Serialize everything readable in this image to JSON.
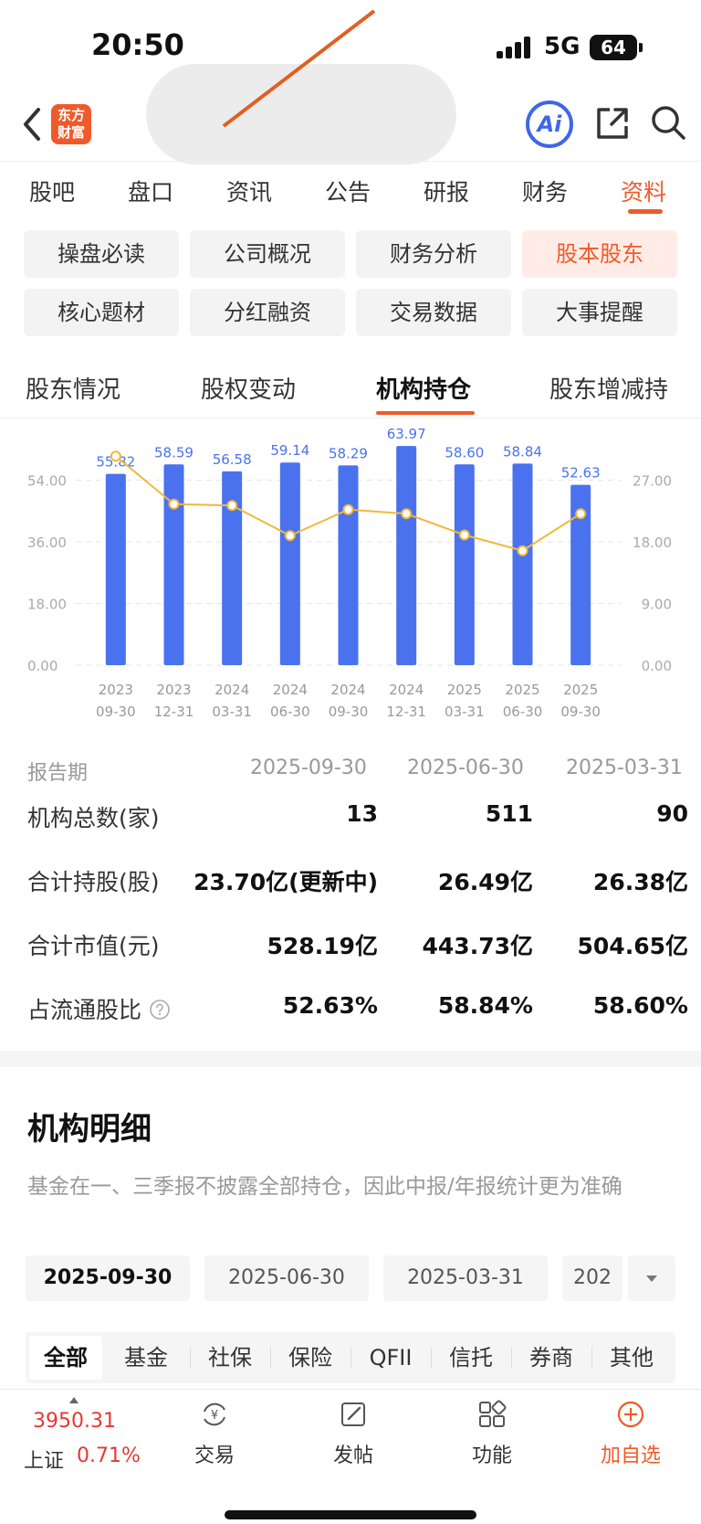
{
  "status": {
    "time": "20:50",
    "network": "5G",
    "battery": "64"
  },
  "nav": {
    "logo_line1": "东方",
    "logo_line2": "财富",
    "ai_label": "Ai"
  },
  "tabs": [
    "股吧",
    "盘口",
    "资讯",
    "公告",
    "研报",
    "财务",
    "资料"
  ],
  "active_tab": "资料",
  "chips": [
    "操盘必读",
    "公司概况",
    "财务分析",
    "股本股东",
    "核心题材",
    "分红融资",
    "交易数据",
    "大事提醒"
  ],
  "active_chip": "股本股东",
  "subtabs": [
    "股东情况",
    "股权变动",
    "机构持仓",
    "股东增减持"
  ],
  "active_subtab": "机构持仓",
  "chart_data": {
    "type": "bar",
    "categories": [
      "2023\n09-30",
      "2023\n12-31",
      "2024\n03-31",
      "2024\n06-30",
      "2024\n09-30",
      "2024\n12-31",
      "2025\n03-31",
      "2025\n06-30",
      "2025\n09-30"
    ],
    "series": [
      {
        "type": "bar",
        "values": [
          55.82,
          58.59,
          56.58,
          59.14,
          58.29,
          63.97,
          58.6,
          58.84,
          52.63
        ],
        "color": "#4a72ee"
      },
      {
        "type": "line",
        "values": [
          30.5,
          23.5,
          23.3,
          18.9,
          22.7,
          22.1,
          19.0,
          16.7,
          22.1
        ],
        "color": "#f2b83b"
      }
    ],
    "ylim_left": [
      0,
      72
    ],
    "yticks_left": [
      "0.00",
      "18.00",
      "36.00",
      "54.00"
    ],
    "ylim_right": [
      0,
      36
    ],
    "yticks_right": [
      "0.00",
      "9.00",
      "18.00",
      "27.00"
    ],
    "grid": true
  },
  "table": {
    "header_label": "报告期",
    "periods": [
      "2025-09-30",
      "2025-06-30",
      "2025-03-31"
    ],
    "rows": [
      {
        "label": "机构总数(家)",
        "values": [
          "13",
          "511",
          "90"
        ]
      },
      {
        "label": "合计持股(股)",
        "values": [
          "23.70亿(更新中)",
          "26.49亿",
          "26.38亿"
        ]
      },
      {
        "label": "合计市值(元)",
        "values": [
          "528.19亿",
          "443.73亿",
          "504.65亿"
        ]
      },
      {
        "label": "占流通股比",
        "values": [
          "52.63%",
          "58.84%",
          "58.60%"
        ]
      }
    ]
  },
  "detail": {
    "title": "机构明细",
    "note": "基金在一、三季报不披露全部持仓，因此中报/年报统计更为准确",
    "dates": [
      "2025-09-30",
      "2025-06-30",
      "2025-03-31",
      "202"
    ],
    "categories": [
      "全部",
      "基金",
      "社保",
      "保险",
      "QFII",
      "信托",
      "券商",
      "其他"
    ]
  },
  "bottom": {
    "index_value": "3950.31",
    "index_name": "上证",
    "index_change": "0.71%",
    "items": [
      "交易",
      "发帖",
      "功能",
      "加自选"
    ]
  },
  "colors": {
    "accent": "#f05a2a",
    "bar": "#4a72ee",
    "line": "#f2b83b",
    "up": "#e53935"
  }
}
